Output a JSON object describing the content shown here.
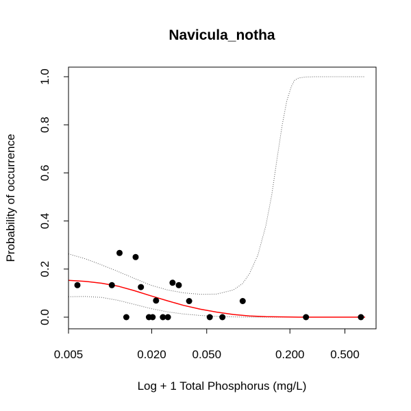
{
  "chart_data": {
    "type": "scatter",
    "title": "Navicula_notha",
    "xlabel": "Log + 1 Total Phosphorus (mg/L)",
    "ylabel": "Probability of occurrence",
    "x_scale": "log",
    "xlim": [
      0.005,
      0.7
    ],
    "ylim": [
      0.0,
      1.0
    ],
    "x_ticks": [
      0.005,
      0.02,
      0.05,
      0.2,
      0.5
    ],
    "x_tick_labels": [
      "0.005",
      "0.020",
      "0.050",
      "0.200",
      "0.500"
    ],
    "y_ticks": [
      0.0,
      0.2,
      0.4,
      0.6,
      0.8,
      1.0
    ],
    "y_tick_labels": [
      "0.0",
      "0.2",
      "0.4",
      "0.6",
      "0.8",
      "1.0"
    ],
    "grid": false,
    "colors": {
      "points": "#000000",
      "fit": "#ff0000",
      "ci": "#555555"
    },
    "points": [
      {
        "x": 0.0058,
        "y": 0.133
      },
      {
        "x": 0.0103,
        "y": 0.133
      },
      {
        "x": 0.0117,
        "y": 0.267
      },
      {
        "x": 0.0131,
        "y": 0.0
      },
      {
        "x": 0.0153,
        "y": 0.25
      },
      {
        "x": 0.0167,
        "y": 0.125
      },
      {
        "x": 0.0191,
        "y": 0.0
      },
      {
        "x": 0.0203,
        "y": 0.0
      },
      {
        "x": 0.0215,
        "y": 0.069
      },
      {
        "x": 0.0241,
        "y": 0.0
      },
      {
        "x": 0.0262,
        "y": 0.0
      },
      {
        "x": 0.0283,
        "y": 0.143
      },
      {
        "x": 0.0314,
        "y": 0.133
      },
      {
        "x": 0.0373,
        "y": 0.067
      },
      {
        "x": 0.0526,
        "y": 0.0
      },
      {
        "x": 0.065,
        "y": 0.0
      },
      {
        "x": 0.0911,
        "y": 0.067
      },
      {
        "x": 0.2613,
        "y": 0.0
      },
      {
        "x": 0.6529,
        "y": 0.0
      }
    ],
    "fit_line": {
      "x": [
        0.005,
        0.0066,
        0.0087,
        0.0114,
        0.015,
        0.0197,
        0.026,
        0.034,
        0.045,
        0.059,
        0.078,
        0.102,
        0.134,
        0.176,
        0.232,
        0.305,
        0.401,
        0.527,
        0.7
      ],
      "y": [
        0.153,
        0.149,
        0.141,
        0.129,
        0.11,
        0.089,
        0.068,
        0.049,
        0.033,
        0.021,
        0.011,
        0.005,
        0.002,
        0.001,
        0.0,
        0.0,
        0.0,
        0.0,
        0.0
      ]
    },
    "ci_upper": {
      "x": [
        0.005,
        0.0066,
        0.0087,
        0.0114,
        0.015,
        0.0197,
        0.026,
        0.034,
        0.045,
        0.059,
        0.078,
        0.091,
        0.102,
        0.117,
        0.134,
        0.148,
        0.163,
        0.176,
        0.19,
        0.205,
        0.216,
        0.232,
        0.26,
        0.305,
        0.401,
        0.527,
        0.7
      ],
      "y": [
        0.263,
        0.243,
        0.217,
        0.19,
        0.161,
        0.133,
        0.113,
        0.101,
        0.095,
        0.096,
        0.113,
        0.14,
        0.181,
        0.257,
        0.38,
        0.51,
        0.675,
        0.8,
        0.9,
        0.96,
        0.985,
        0.995,
        0.999,
        1.0,
        1.0,
        1.0,
        1.0
      ]
    },
    "ci_lower": {
      "x": [
        0.005,
        0.0066,
        0.0087,
        0.0114,
        0.015,
        0.0197,
        0.026,
        0.034,
        0.045,
        0.059,
        0.078,
        0.102,
        0.134,
        0.176,
        0.232,
        0.305,
        0.401,
        0.527,
        0.7
      ],
      "y": [
        0.085,
        0.086,
        0.082,
        0.07,
        0.053,
        0.036,
        0.022,
        0.013,
        0.007,
        0.003,
        0.001,
        0.0,
        0.0,
        0.0,
        0.0,
        0.0,
        0.0,
        0.0,
        0.0
      ]
    }
  }
}
